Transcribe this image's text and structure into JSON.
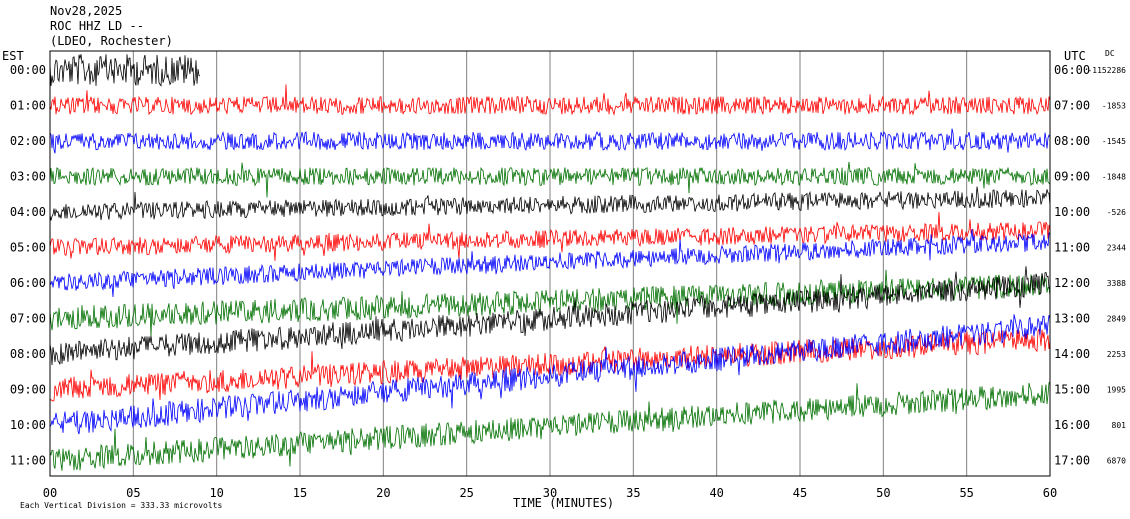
{
  "chart_data": {
    "type": "line",
    "title_lines": [
      "Nov28,2025",
      "ROC HHZ LD --",
      "(LDEO, Rochester)"
    ],
    "left_axis_title": "EST",
    "right_axis_title": "UTC",
    "dc_header": "DC",
    "xlabel": "TIME (MINUTES)",
    "x_ticks": [
      "00",
      "05",
      "10",
      "15",
      "20",
      "25",
      "30",
      "35",
      "40",
      "45",
      "50",
      "55",
      "60"
    ],
    "xlim": [
      0,
      60
    ],
    "scale_note": "Each Vertical Division = 333.33 microvolts",
    "grid": true,
    "rows": [
      {
        "est": "00:00",
        "utc": "06:00",
        "dc": "-1152286",
        "color": "#000000",
        "end_min": 9
      },
      {
        "est": "01:00",
        "utc": "07:00",
        "dc": "-1853",
        "color": "#ff0000",
        "end_min": 60
      },
      {
        "est": "02:00",
        "utc": "08:00",
        "dc": "-1545",
        "color": "#0000ff",
        "end_min": 60
      },
      {
        "est": "03:00",
        "utc": "09:00",
        "dc": "-1848",
        "color": "#007000",
        "end_min": 60
      },
      {
        "est": "04:00",
        "utc": "10:00",
        "dc": "-526",
        "color": "#000000",
        "end_min": 60
      },
      {
        "est": "05:00",
        "utc": "11:00",
        "dc": "2344",
        "color": "#ff0000",
        "end_min": 60
      },
      {
        "est": "06:00",
        "utc": "12:00",
        "dc": "3388",
        "color": "#0000ff",
        "end_min": 60
      },
      {
        "est": "07:00",
        "utc": "13:00",
        "dc": "2849",
        "color": "#007000",
        "end_min": 60
      },
      {
        "est": "08:00",
        "utc": "14:00",
        "dc": "2253",
        "color": "#000000",
        "end_min": 60
      },
      {
        "est": "09:00",
        "utc": "15:00",
        "dc": "1995",
        "color": "#ff0000",
        "end_min": 60
      },
      {
        "est": "10:00",
        "utc": "16:00",
        "dc": "801",
        "color": "#0000ff",
        "end_min": 60
      },
      {
        "est": "11:00",
        "utc": "17:00",
        "dc": "6870",
        "color": "#007000",
        "end_min": 60
      }
    ]
  }
}
